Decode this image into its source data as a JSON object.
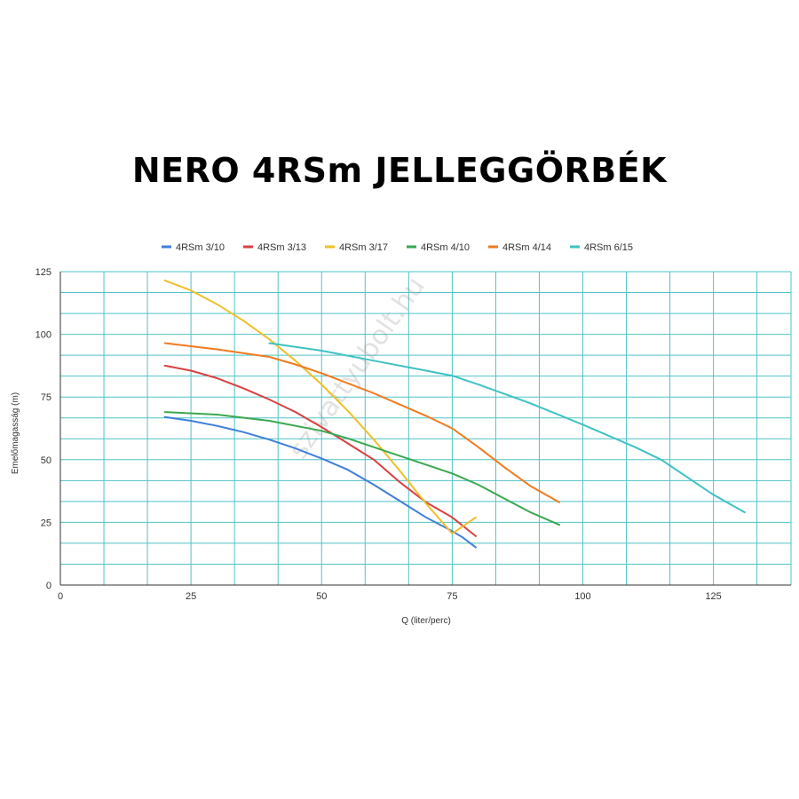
{
  "title": "NERO 4RSm JELLEGGÖRBÉK",
  "watermark": "szivattyubolt.hu",
  "chart_data": {
    "type": "line",
    "xlabel": "Q (liter/perc)",
    "ylabel": "Emelőmagasság (m)",
    "xlim": [
      0,
      140
    ],
    "ylim": [
      0,
      125
    ],
    "xticks": [
      0,
      25,
      50,
      75,
      100,
      125
    ],
    "yticks": [
      0,
      25,
      50,
      75,
      100,
      125
    ],
    "grid": true,
    "legend_position": "top",
    "series": [
      {
        "name": "4RSm 3/10",
        "color": "#3f7fd9",
        "x": [
          20,
          25,
          30,
          35,
          40,
          45,
          50,
          55,
          60,
          65,
          70,
          75,
          77,
          79.5
        ],
        "y": [
          67,
          65.5,
          63.5,
          61,
          58,
          54.5,
          50.5,
          46,
          40,
          33.5,
          27,
          21.5,
          19,
          15
        ]
      },
      {
        "name": "4RSm 3/13",
        "color": "#d94040",
        "x": [
          20,
          25,
          30,
          35,
          40,
          45,
          50,
          55,
          60,
          65,
          70,
          75,
          79.5
        ],
        "y": [
          87.5,
          85.5,
          82.5,
          78.5,
          74,
          69,
          63,
          56.5,
          50,
          41,
          33,
          27,
          19.5
        ]
      },
      {
        "name": "4RSm 3/17",
        "color": "#efc029",
        "x": [
          20,
          25,
          30,
          35,
          40,
          45,
          50,
          55,
          60,
          65,
          70,
          75,
          79.5
        ],
        "y": [
          121.5,
          117.5,
          112,
          105.5,
          98,
          89.5,
          80,
          69.5,
          58,
          45.5,
          32.5,
          20.5,
          27
        ]
      },
      {
        "name": "4RSm 4/10",
        "color": "#3aa84f",
        "x": [
          20,
          30,
          40,
          50,
          55,
          60,
          65,
          70,
          75,
          80,
          85,
          90,
          95.5
        ],
        "y": [
          69,
          68,
          65.5,
          61.5,
          58.5,
          55,
          51.5,
          48,
          44.5,
          40,
          34.5,
          29,
          24
        ]
      },
      {
        "name": "4RSm 4/14",
        "color": "#f07a1e",
        "x": [
          20,
          30,
          40,
          45,
          50,
          55,
          60,
          65,
          70,
          75,
          80,
          85,
          90,
          95.5
        ],
        "y": [
          96.5,
          94,
          91,
          88,
          84.5,
          80.5,
          76.5,
          72,
          67.5,
          62.5,
          55,
          47,
          39.5,
          33
        ]
      },
      {
        "name": "4RSm 6/15",
        "color": "#3fc1c4",
        "x": [
          40,
          50,
          60,
          70,
          75,
          80,
          90,
          100,
          110,
          115,
          120,
          125,
          131
        ],
        "y": [
          96.5,
          93.5,
          89.5,
          85.5,
          83.5,
          80,
          72.5,
          64,
          55,
          50,
          43,
          36,
          29
        ]
      }
    ]
  }
}
